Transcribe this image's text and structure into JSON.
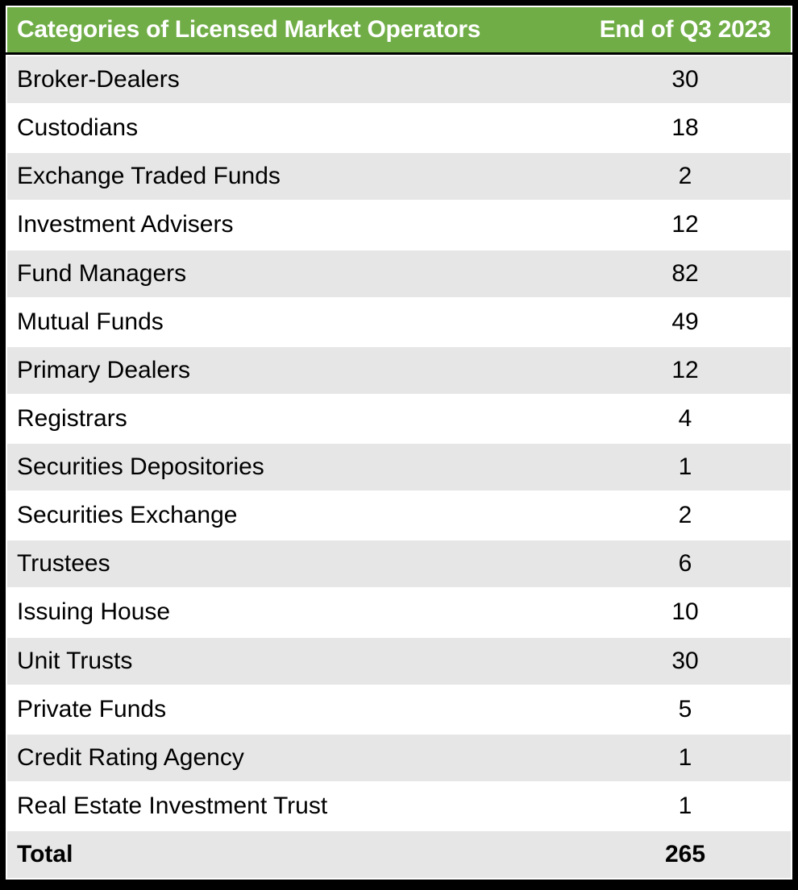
{
  "table": {
    "header": {
      "categories": "Categories of Licensed Market Operators",
      "period": "End of Q3 2023"
    },
    "rows": [
      {
        "category": "Broker-Dealers",
        "value": "30"
      },
      {
        "category": "Custodians",
        "value": "18"
      },
      {
        "category": "Exchange Traded Funds",
        "value": "2"
      },
      {
        "category": "Investment Advisers",
        "value": "12"
      },
      {
        "category": "Fund Managers",
        "value": "82"
      },
      {
        "category": "Mutual Funds",
        "value": "49"
      },
      {
        "category": "Primary Dealers",
        "value": "12"
      },
      {
        "category": "Registrars",
        "value": "4"
      },
      {
        "category": "Securities Depositories",
        "value": "1"
      },
      {
        "category": "Securities Exchange",
        "value": "2"
      },
      {
        "category": "Trustees",
        "value": "6"
      },
      {
        "category": "Issuing House",
        "value": "10"
      },
      {
        "category": "Unit Trusts",
        "value": "30"
      },
      {
        "category": "Private Funds",
        "value": "5"
      },
      {
        "category": "Credit Rating Agency",
        "value": "1"
      },
      {
        "category": "Real Estate Investment Trust",
        "value": "1"
      }
    ],
    "total": {
      "label": "Total",
      "value": "265"
    }
  },
  "colors": {
    "header_bg": "#70AD47",
    "header_text": "#FFFFFF",
    "stripe_row_bg": "#E7E6E6",
    "plain_row_bg": "#FFFFFF",
    "border": "#000000",
    "body_text": "#000000"
  },
  "chart_data": {
    "type": "table",
    "title": "Categories of Licensed Market Operators",
    "columns": [
      "Categories of Licensed Market Operators",
      "End of Q3 2023"
    ],
    "categories": [
      "Broker-Dealers",
      "Custodians",
      "Exchange Traded Funds",
      "Investment Advisers",
      "Fund Managers",
      "Mutual Funds",
      "Primary Dealers",
      "Registrars",
      "Securities Depositories",
      "Securities Exchange",
      "Trustees",
      "Issuing House",
      "Unit Trusts",
      "Private Funds",
      "Credit Rating Agency",
      "Real Estate Investment Trust"
    ],
    "values": [
      30,
      18,
      2,
      12,
      82,
      49,
      12,
      4,
      1,
      2,
      6,
      10,
      30,
      5,
      1,
      1
    ],
    "total": 265,
    "layout": "striped rows, header green, total row bold"
  }
}
